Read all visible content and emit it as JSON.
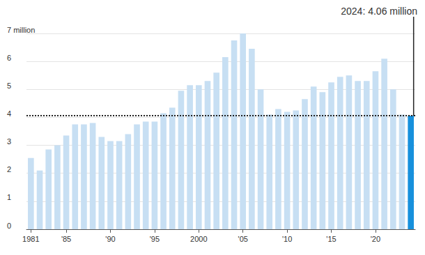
{
  "chart_data": {
    "type": "bar",
    "annotation": "2024: 4.06 million",
    "categories": [
      "1981",
      null,
      null,
      null,
      "'85",
      null,
      null,
      null,
      null,
      "'90",
      null,
      null,
      null,
      null,
      "'95",
      null,
      null,
      null,
      null,
      "2000",
      null,
      null,
      null,
      null,
      "'05",
      null,
      null,
      null,
      null,
      "'10",
      null,
      null,
      null,
      null,
      "'15",
      null,
      null,
      null,
      null,
      "'20",
      null,
      null,
      null,
      null
    ],
    "values": [
      2.55,
      2.1,
      2.85,
      3.0,
      3.35,
      3.75,
      3.75,
      3.8,
      3.3,
      3.15,
      3.15,
      3.4,
      3.75,
      3.85,
      3.85,
      4.15,
      4.35,
      4.95,
      5.15,
      5.15,
      5.3,
      5.6,
      6.15,
      6.75,
      7.0,
      6.45,
      5.0,
      4.1,
      4.3,
      4.2,
      4.25,
      4.65,
      5.1,
      4.9,
      5.25,
      5.45,
      5.5,
      5.3,
      5.3,
      5.65,
      6.1,
      5.0,
      4.1,
      4.06
    ],
    "colors": [
      "#c7dff3",
      "#c7dff3",
      "#c7dff3",
      "#c7dff3",
      "#c7dff3",
      "#c7dff3",
      "#c7dff3",
      "#c7dff3",
      "#c7dff3",
      "#c7dff3",
      "#c7dff3",
      "#c7dff3",
      "#c7dff3",
      "#c7dff3",
      "#c7dff3",
      "#c7dff3",
      "#c7dff3",
      "#c7dff3",
      "#c7dff3",
      "#c7dff3",
      "#c7dff3",
      "#c7dff3",
      "#c7dff3",
      "#c7dff3",
      "#c7dff3",
      "#c7dff3",
      "#c7dff3",
      "#c7dff3",
      "#c7dff3",
      "#c7dff3",
      "#c7dff3",
      "#c7dff3",
      "#c7dff3",
      "#c7dff3",
      "#c7dff3",
      "#c7dff3",
      "#c7dff3",
      "#c7dff3",
      "#c7dff3",
      "#c7dff3",
      "#c7dff3",
      "#c7dff3",
      "#c7dff3",
      "#1790dc"
    ],
    "ylim": [
      0,
      7
    ],
    "yticks": [
      0,
      1,
      2,
      3,
      4,
      5,
      6,
      {
        "value": 7,
        "label": "7 million"
      }
    ],
    "grid": true
  }
}
